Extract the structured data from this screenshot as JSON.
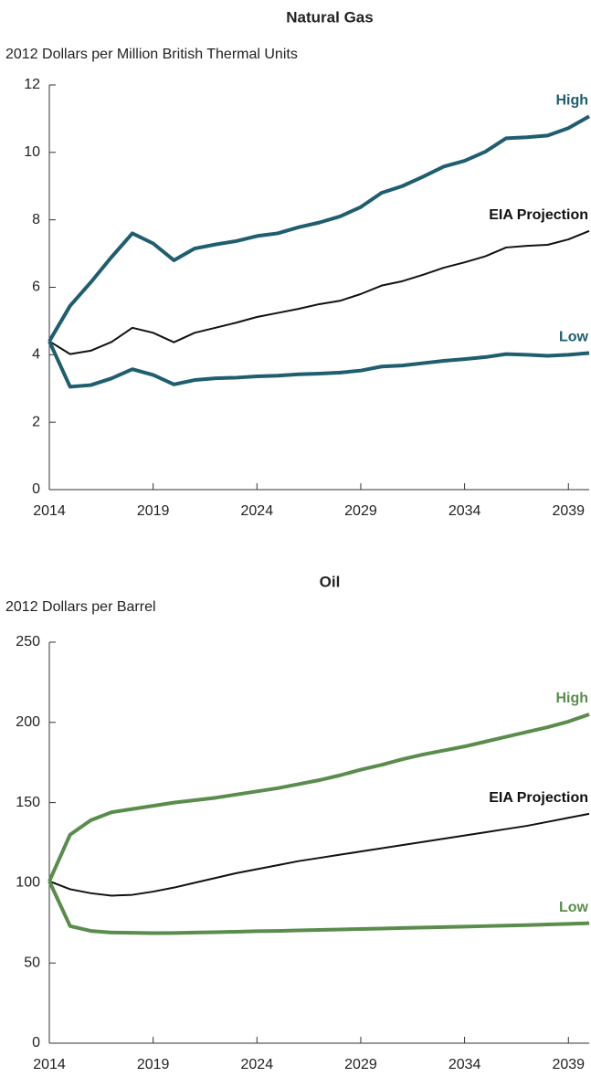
{
  "chart_data": [
    {
      "type": "line",
      "title": "Natural Gas",
      "y_label": "2012 Dollars per Million British Thermal Units",
      "x": [
        2014,
        2015,
        2016,
        2017,
        2018,
        2019,
        2020,
        2021,
        2022,
        2023,
        2024,
        2025,
        2026,
        2027,
        2028,
        2029,
        2030,
        2031,
        2032,
        2033,
        2034,
        2035,
        2036,
        2037,
        2038,
        2039,
        2040
      ],
      "xlim": [
        2014,
        2040
      ],
      "xticks": [
        2014,
        2019,
        2024,
        2029,
        2034,
        2039
      ],
      "ylim": [
        0,
        12
      ],
      "yticks": [
        0,
        2,
        4,
        6,
        8,
        10,
        12
      ],
      "series": [
        {
          "name": "High",
          "color": "#1e5e6e",
          "width": 4,
          "values": [
            4.4,
            5.45,
            6.15,
            6.9,
            7.6,
            7.3,
            6.8,
            7.15,
            7.27,
            7.37,
            7.52,
            7.6,
            7.78,
            7.92,
            8.1,
            8.38,
            8.8,
            9.0,
            9.28,
            9.58,
            9.75,
            10.02,
            10.42,
            10.45,
            10.5,
            10.72,
            11.07
          ]
        },
        {
          "name": "EIA Projection",
          "color": "#111111",
          "width": 2,
          "values": [
            4.4,
            4.02,
            4.12,
            4.38,
            4.8,
            4.65,
            4.37,
            4.65,
            4.8,
            4.95,
            5.12,
            5.24,
            5.36,
            5.5,
            5.6,
            5.8,
            6.05,
            6.18,
            6.37,
            6.58,
            6.74,
            6.92,
            7.18,
            7.23,
            7.26,
            7.42,
            7.67
          ]
        },
        {
          "name": "Low",
          "color": "#1e5e6e",
          "width": 4,
          "values": [
            4.4,
            3.05,
            3.1,
            3.3,
            3.57,
            3.4,
            3.12,
            3.25,
            3.3,
            3.32,
            3.36,
            3.38,
            3.42,
            3.44,
            3.47,
            3.53,
            3.65,
            3.68,
            3.75,
            3.82,
            3.87,
            3.93,
            4.02,
            4.0,
            3.97,
            4.0,
            4.05
          ]
        }
      ]
    },
    {
      "type": "line",
      "title": "Oil",
      "y_label": "2012 Dollars per Barrel",
      "x": [
        2014,
        2015,
        2016,
        2017,
        2018,
        2019,
        2020,
        2021,
        2022,
        2023,
        2024,
        2025,
        2026,
        2027,
        2028,
        2029,
        2030,
        2031,
        2032,
        2033,
        2034,
        2035,
        2036,
        2037,
        2038,
        2039,
        2040
      ],
      "xlim": [
        2014,
        2040
      ],
      "xticks": [
        2014,
        2019,
        2024,
        2029,
        2034,
        2039
      ],
      "ylim": [
        0,
        250
      ],
      "yticks": [
        0,
        50,
        100,
        150,
        200,
        250
      ],
      "series": [
        {
          "name": "High",
          "color": "#5a8c4c",
          "width": 4,
          "values": [
            101,
            130,
            139,
            144,
            146,
            148,
            150,
            151.5,
            153,
            155,
            157,
            159,
            161.5,
            164,
            167,
            170.5,
            173.5,
            177,
            180,
            182.5,
            185,
            188,
            191,
            194,
            197,
            200.5,
            205
          ]
        },
        {
          "name": "EIA Projection",
          "color": "#111111",
          "width": 2,
          "values": [
            101,
            96,
            93.5,
            92,
            92.5,
            94.5,
            97,
            100,
            103,
            106,
            108.5,
            111,
            113.5,
            115.5,
            117.5,
            119.5,
            121.5,
            123.5,
            125.5,
            127.5,
            129.5,
            131.5,
            133.5,
            135.5,
            138,
            140.5,
            143
          ]
        },
        {
          "name": "Low",
          "color": "#5a8c4c",
          "width": 4,
          "values": [
            101,
            73,
            70,
            69,
            68.8,
            68.6,
            68.7,
            69,
            69.2,
            69.5,
            69.8,
            70,
            70.3,
            70.6,
            70.9,
            71.2,
            71.5,
            71.8,
            72.1,
            72.4,
            72.7,
            73,
            73.3,
            73.6,
            74,
            74.4,
            74.8
          ]
        }
      ]
    }
  ]
}
